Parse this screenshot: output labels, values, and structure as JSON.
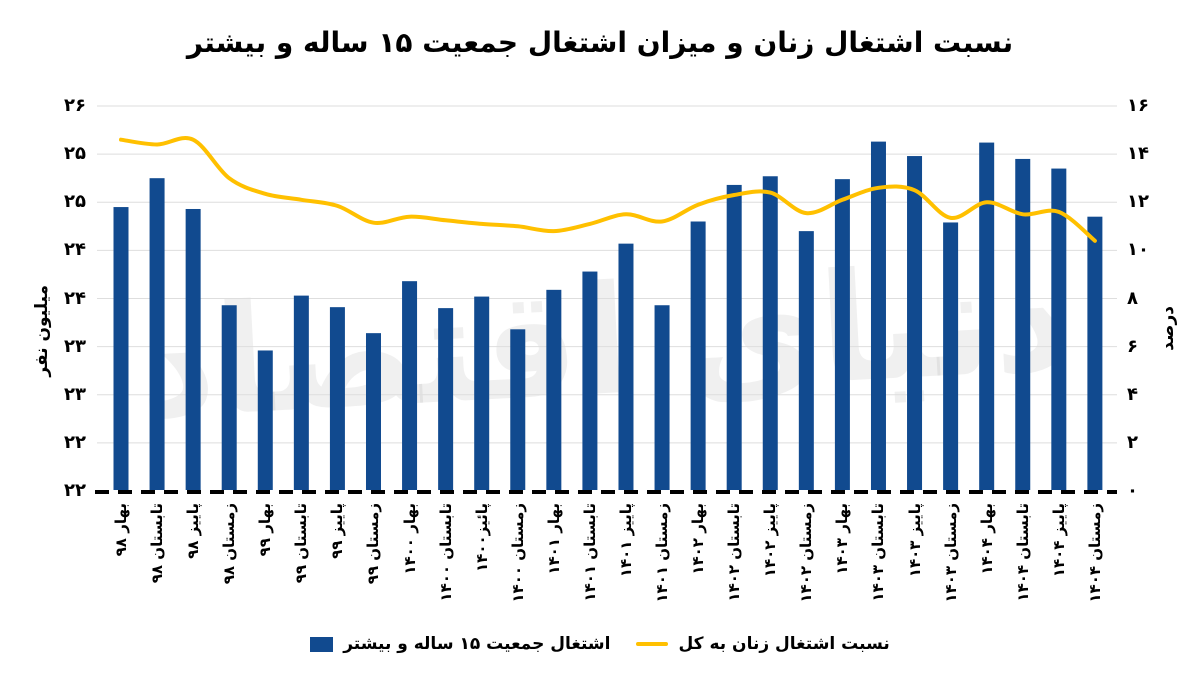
{
  "title": "نسبت اشتغال زنان و میزان اشتغال جمعیت ۱۵ ساله و بیشتر",
  "watermark": "دنیای اقتصاد",
  "colors": {
    "bar": "#114A8F",
    "line": "#FFC000",
    "grid": "#DEDEDE",
    "axis": "#000000",
    "text": "#000000"
  },
  "left_axis": {
    "title": "میلیون نفر",
    "labels_top_to_bottom": [
      "۲۶",
      "۲۵",
      "۲۵",
      "۲۴",
      "۲۴",
      "۲۳",
      "۲۳",
      "۲۲",
      "۲۲"
    ],
    "min": 22,
    "max": 26,
    "step": 0.5
  },
  "right_axis": {
    "title": "درصد",
    "labels_top_to_bottom": [
      "۱۶",
      "۱۴",
      "۱۲",
      "۱۰",
      "۸",
      "۶",
      "۴",
      "۲",
      "۰"
    ],
    "min": 0,
    "max": 16,
    "step": 2
  },
  "legend": {
    "bar_label": "اشتغال جمعیت ۱۵ ساله و بیشتر",
    "line_label": "نسبت اشتغال زنان به کل"
  },
  "chart_data": {
    "type": "combo",
    "grid": true,
    "legend_position": "bottom",
    "left_ylim": [
      22,
      26
    ],
    "right_ylim": [
      0,
      16
    ],
    "categories": [
      "بهار ۹۸",
      "تابستان ۹۸",
      "پاییز ۹۸",
      "زمستان ۹۸",
      "بهار ۹۹",
      "تابستان ۹۹",
      "پاییز ۹۹",
      "زمستان ۹۹",
      "بهار ۱۴۰۰",
      "تابستان ۱۴۰۰",
      "پائیز۱۴۰۰",
      "زمستان ۱۴۰۰",
      "بهار ۱۴۰۱",
      "تابستان ۱۴۰۱",
      "پاییز ۱۴۰۱",
      "زمستان ۱۴۰۱",
      "بهار ۱۴۰۲",
      "تابستان ۱۴۰۲",
      "پاییز ۱۴۰۲",
      "زمستان ۱۴۰۲",
      "بهار ۱۴۰۳",
      "تابستان ۱۴۰۳",
      "پاییز ۱۴۰۳",
      "زمستان ۱۴۰۳",
      "بهار ۱۴۰۴",
      "تابستان ۱۴۰۴",
      "پاییز ۱۴۰۴",
      "زمستان ۱۴۰۴"
    ],
    "series": [
      {
        "name": "اشتغال جمعیت ۱۵ ساله و بیشتر",
        "type": "bar",
        "axis": "left",
        "unit": "میلیون نفر",
        "values": [
          24.95,
          25.25,
          24.93,
          23.93,
          23.46,
          24.03,
          23.91,
          23.64,
          24.18,
          23.9,
          24.02,
          23.68,
          24.09,
          24.28,
          24.57,
          23.93,
          24.8,
          25.18,
          25.27,
          24.7,
          25.24,
          25.63,
          25.48,
          24.79,
          25.62,
          25.45,
          25.35,
          24.85
        ]
      },
      {
        "name": "نسبت اشتغال زنان به کل",
        "type": "line",
        "axis": "right",
        "unit": "درصد",
        "values": [
          14.6,
          14.4,
          14.6,
          13.0,
          12.35,
          12.1,
          11.85,
          11.15,
          11.4,
          11.25,
          11.1,
          11.0,
          10.8,
          11.1,
          11.5,
          11.2,
          11.9,
          12.3,
          12.4,
          11.55,
          12.1,
          12.6,
          12.5,
          11.35,
          12.0,
          11.5,
          11.6,
          10.4
        ]
      }
    ]
  }
}
